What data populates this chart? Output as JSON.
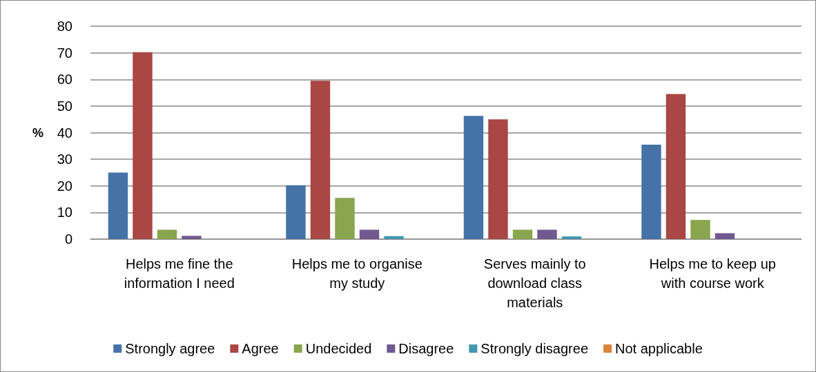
{
  "chart_data": {
    "type": "bar",
    "ylabel": "%",
    "categories": [
      "Helps me fine the information I need",
      "Helps me to organise my study",
      "Serves mainly to download class materials",
      "Helps me to keep up with course work"
    ],
    "series": [
      {
        "name": "Strongly agree",
        "color": "#4572a7",
        "values": [
          25,
          20.2,
          46.3,
          35.5
        ]
      },
      {
        "name": "Agree",
        "color": "#aa4643",
        "values": [
          70.2,
          59.5,
          45,
          54.5
        ]
      },
      {
        "name": "Undecided",
        "color": "#89a54e",
        "values": [
          3.5,
          15.5,
          3.5,
          7.2
        ]
      },
      {
        "name": "Disagree",
        "color": "#71588f",
        "values": [
          1.2,
          3.5,
          3.5,
          2.2
        ]
      },
      {
        "name": "Strongly disagree",
        "color": "#4198af",
        "values": [
          0,
          1.1,
          1,
          0
        ]
      },
      {
        "name": "Not applicable",
        "color": "#db843d",
        "values": [
          0,
          0,
          0,
          0
        ]
      }
    ],
    "ylim": [
      0,
      80
    ],
    "yticks": [
      0,
      10,
      20,
      30,
      40,
      50,
      60,
      70,
      80
    ],
    "grid": "y",
    "legend": "bottom"
  }
}
